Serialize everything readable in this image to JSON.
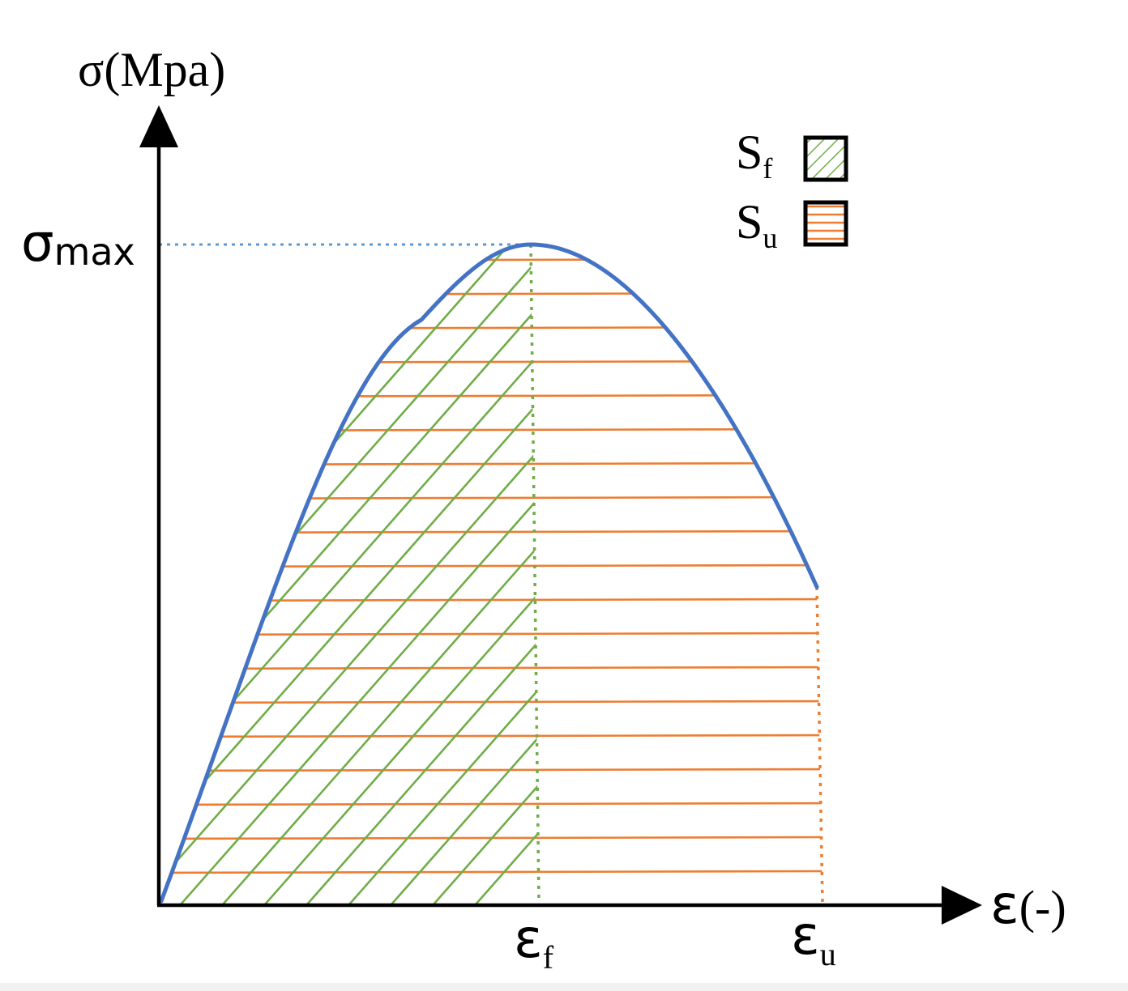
{
  "diagram": {
    "y_axis": {
      "symbol": "σ",
      "unit": "(Mpa)"
    },
    "x_axis": {
      "symbol": "ε",
      "unit": "(-)"
    },
    "y_marker": {
      "symbol": "σ",
      "sub": "max"
    },
    "x_markers": [
      {
        "symbol": "ε",
        "sub": "f"
      },
      {
        "symbol": "ε",
        "sub": "u"
      }
    ],
    "legend": [
      {
        "symbol": "S",
        "sub": "f",
        "pattern": "diagonal-hatch",
        "color": "#70ad47"
      },
      {
        "symbol": "S",
        "sub": "u",
        "pattern": "horizontal-hatch",
        "color": "#ed7d31"
      }
    ],
    "colors": {
      "curve": "#4472c4",
      "axis": "#000000",
      "hatch_f": "#70ad47",
      "hatch_u": "#ed7d31",
      "guide_sigma": "#5b9bd5"
    }
  }
}
